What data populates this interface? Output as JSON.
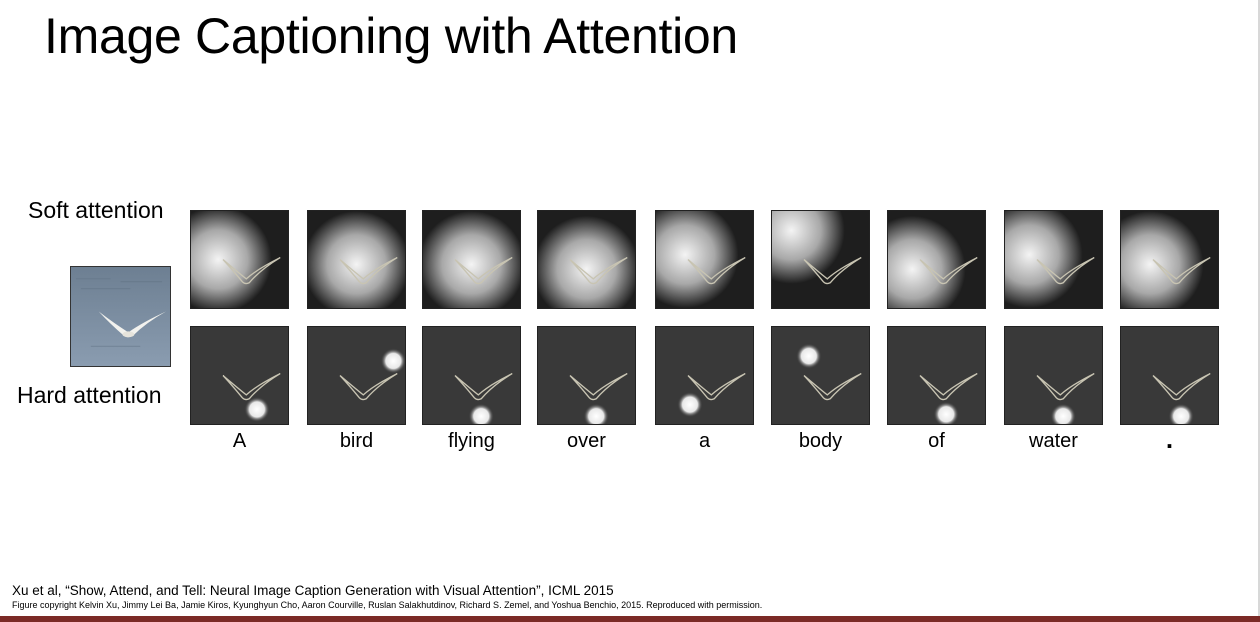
{
  "slide": {
    "title": "Image Captioning with Attention",
    "soft_label": "Soft attention",
    "hard_label": "Hard attention",
    "accent_color": "#7b2a26"
  },
  "words": [
    "A",
    "bird",
    "flying",
    "over",
    "a",
    "body",
    "of",
    "water",
    "."
  ],
  "footer": {
    "citation": "Xu et al, “Show, Attend, and Tell: Neural Image Caption Generation with Visual Attention”, ICML 2015",
    "copyright": "Figure copyright Kelvin Xu, Jimmy Lei Ba, Jamie Kiros, Kyunghyun Cho, Aaron Courville, Ruslan Salakhutdinov, Richard S. Zemel, and Yoshua Benchio, 2015. Reproduced with permission."
  }
}
